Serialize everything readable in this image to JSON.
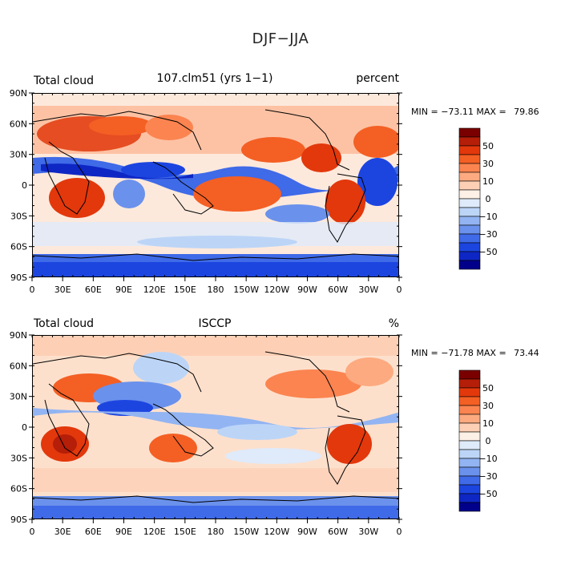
{
  "title": "DJF−JJA",
  "panels": [
    {
      "left_label": "Total cloud",
      "center_label": "107.clm51 (yrs 1−1)",
      "right_label": "percent",
      "min_label": "MIN =",
      "min_value": "−73.11",
      "max_label": "MAX =",
      "max_value": "79.86"
    },
    {
      "left_label": "Total cloud",
      "center_label": "ISCCP",
      "right_label": "%",
      "min_label": "MIN =",
      "min_value": "−71.78",
      "max_label": "MAX =",
      "max_value": "73.44"
    }
  ],
  "lat_ticks": [
    "90N",
    "60N",
    "30N",
    "0",
    "30S",
    "60S",
    "90S"
  ],
  "lon_ticks": [
    "0",
    "30E",
    "60E",
    "90E",
    "120E",
    "150E",
    "180",
    "150W",
    "120W",
    "90W",
    "60W",
    "30W",
    "0"
  ],
  "colorbar": {
    "labels": [
      "50",
      "30",
      "10",
      "0",
      "−10",
      "−30",
      "−50"
    ],
    "colors": [
      "#7a0000",
      "#b51e08",
      "#e2380c",
      "#f45f24",
      "#fb8450",
      "#fdaa80",
      "#fdd0b6",
      "#fdf0e6",
      "#dfeafa",
      "#bcd5f7",
      "#92b4f2",
      "#6a91ec",
      "#3f6ae8",
      "#1c45e0",
      "#0e26c4",
      "#00008a"
    ]
  }
}
